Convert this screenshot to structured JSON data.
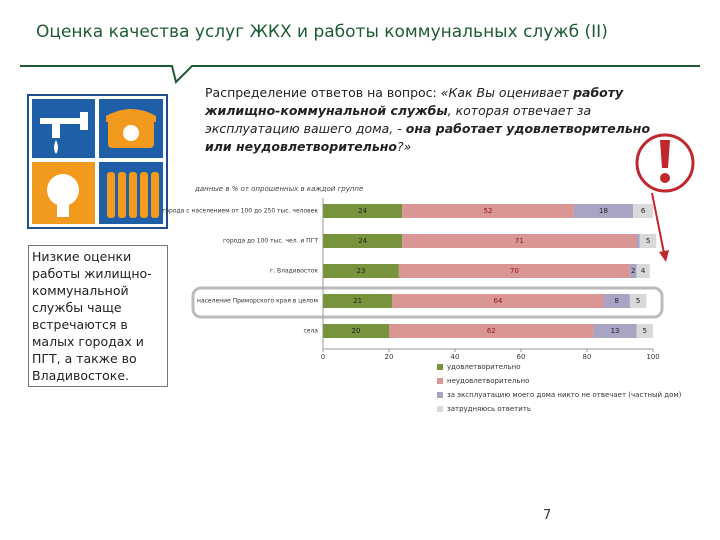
{
  "title": "Оценка качества услуг ЖКХ и работы коммунальных служб (II)",
  "question": [
    "Распределение ответов на вопрос: ",
    "«Как Вы оценивает",
    "работу жилищно-коммунальной службы",
    ", которая отвечает за эксплуатацию вашего дома, - ",
    "она работает удовлетворительно или неудовлетворительно",
    "?»"
  ],
  "note": "Низкие оценки работы жилищно-коммунальной службы чаще встречаются в малых городах и ПГТ, а также во Владивостоке.",
  "page_number": "7",
  "chart_data": {
    "type": "stacked-barh",
    "subtitle": "данные в % от опрошенных в каждой группе",
    "categories": [
      "города с населением от 100 до 250 тыс. человек",
      "города до 100 тыс. чел. и ПГТ",
      "г. Владивосток",
      "население Приморского края в целом",
      "села"
    ],
    "series": [
      {
        "name": "удовлетворительно",
        "color": "#77933c",
        "values": [
          24,
          24,
          23,
          21,
          20
        ]
      },
      {
        "name": "неудовлетворительно",
        "color": "#d99694",
        "values": [
          52,
          71,
          70,
          64,
          62
        ]
      },
      {
        "name": "за эксплуатацию моего дома никто не отвечает (частный дом)",
        "color": "#a9a4c4",
        "values": [
          18,
          1,
          2,
          8,
          13
        ]
      },
      {
        "name": "затрудняюсь ответить",
        "color": "#d9d9d9",
        "values": [
          6,
          5,
          4,
          5,
          5
        ]
      }
    ],
    "xlim": [
      0,
      100
    ],
    "xticks": [
      0,
      20,
      40,
      60,
      80,
      100
    ]
  }
}
